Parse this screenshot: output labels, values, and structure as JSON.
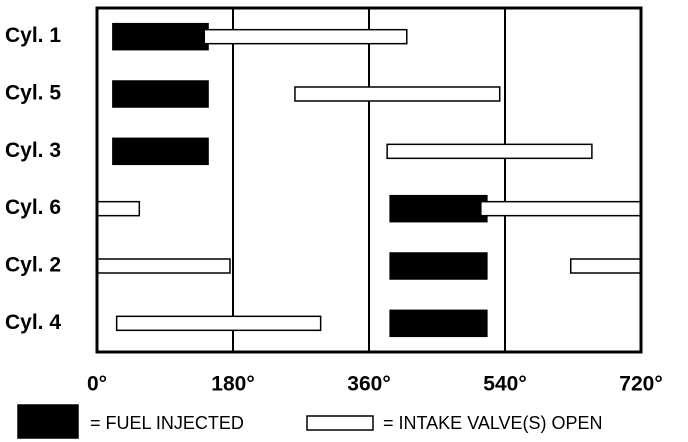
{
  "chart_data": {
    "type": "range",
    "categories": [
      "Cyl. 1",
      "Cyl. 5",
      "Cyl. 3",
      "Cyl. 6",
      "Cyl. 2",
      "Cyl. 4"
    ],
    "series": [
      {
        "name": "= FUEL INJECTED",
        "color": "#000000",
        "values": [
          [
            [
              21,
              147
            ]
          ],
          [
            [
              21,
              147
            ]
          ],
          [
            [
              21,
              147
            ]
          ],
          [
            [
              388,
              516
            ]
          ],
          [
            [
              388,
              516
            ]
          ],
          [
            [
              388,
              516
            ]
          ]
        ]
      },
      {
        "name": "= INTAKE VALVE(S) OPEN",
        "color": "#ffffff",
        "values": [
          [
            [
              142,
              410
            ]
          ],
          [
            [
              262,
              533
            ]
          ],
          [
            [
              384,
              655
            ]
          ],
          [
            [
              0,
              56
            ],
            [
              508,
              720
            ]
          ],
          [
            [
              0,
              176
            ],
            [
              627,
              720
            ]
          ],
          [
            [
              26,
              296
            ]
          ]
        ]
      }
    ],
    "xlim": [
      0,
      720
    ],
    "xticks": [
      {
        "value": 0,
        "label": "0°"
      },
      {
        "value": 180,
        "label": "180°"
      },
      {
        "value": 360,
        "label": "360°"
      },
      {
        "value": 540,
        "label": "540°"
      },
      {
        "value": 720,
        "label": "720°"
      }
    ],
    "grid": true
  }
}
